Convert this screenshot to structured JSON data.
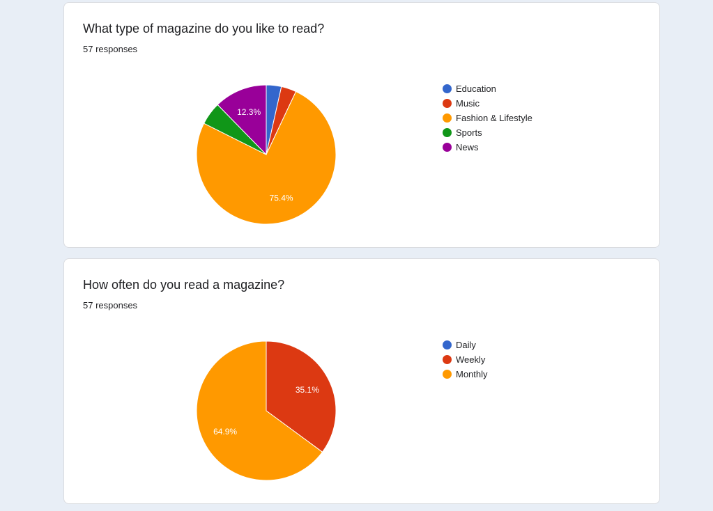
{
  "chart_data": [
    {
      "type": "pie",
      "title": "What type of magazine do you like to read?",
      "subtitle": "57 responses",
      "legend_position": "right",
      "start_angle_deg": 90,
      "slices": [
        {
          "label": "Education",
          "value": 3.5,
          "color": "#3366cc",
          "display": ""
        },
        {
          "label": "Music",
          "value": 3.5,
          "color": "#dc3912",
          "display": ""
        },
        {
          "label": "Fashion & Lifestyle",
          "value": 75.4,
          "color": "#ff9900",
          "display": "75.4%"
        },
        {
          "label": "Sports",
          "value": 5.3,
          "color": "#109618",
          "display": ""
        },
        {
          "label": "News",
          "value": 12.3,
          "color": "#990099",
          "display": "12.3%"
        }
      ]
    },
    {
      "type": "pie",
      "title": "How often do you read a magazine?",
      "subtitle": "57 responses",
      "legend_position": "right",
      "start_angle_deg": 90,
      "slices": [
        {
          "label": "Daily",
          "value": 0,
          "color": "#3366cc",
          "display": ""
        },
        {
          "label": "Weekly",
          "value": 35.1,
          "color": "#dc3912",
          "display": "35.1%"
        },
        {
          "label": "Monthly",
          "value": 64.9,
          "color": "#ff9900",
          "display": "64.9%"
        }
      ]
    }
  ]
}
